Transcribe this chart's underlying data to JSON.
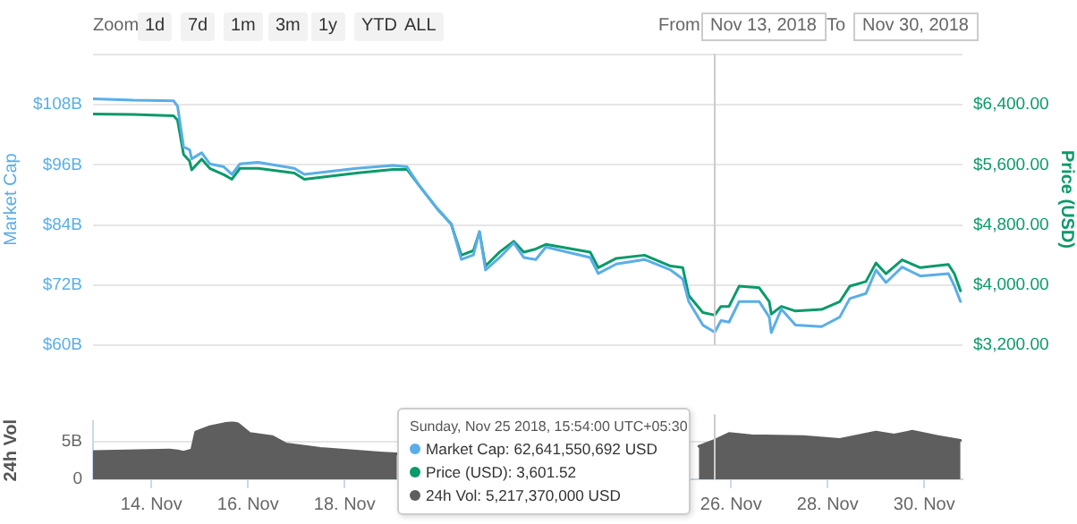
{
  "chart_data": [
    {
      "type": "line",
      "ylabel": "Market Cap",
      "y2label": "Price (USD)",
      "x": [
        "2018-11-12T19:00",
        "2018-11-13T15:00",
        "2018-11-14T11:00",
        "2018-11-14T13:00",
        "2018-11-14T16:00",
        "2018-11-14T19:00",
        "2018-11-14T20:00",
        "2018-11-15T01:00",
        "2018-11-15T05:00",
        "2018-11-15T12:00",
        "2018-11-15T16:00",
        "2018-11-15T20:00",
        "2018-11-16T05:00",
        "2018-11-16T23:00",
        "2018-11-17T04:00",
        "2018-11-18T06:00",
        "2018-11-19T00:00",
        "2018-11-19T07:00",
        "2018-11-19T13:00",
        "2018-11-19T22:00",
        "2018-11-20T05:00",
        "2018-11-20T10:00",
        "2018-11-20T16:00",
        "2018-11-20T19:00",
        "2018-11-20T22:00",
        "2018-11-21T05:00",
        "2018-11-21T12:00",
        "2018-11-21T17:00",
        "2018-11-21T23:00",
        "2018-11-22T04:00",
        "2018-11-23T02:00",
        "2018-11-23T06:00",
        "2018-11-23T15:00",
        "2018-11-24T05:00",
        "2018-11-24T18:00",
        "2018-11-25T00:00",
        "2018-11-25T03:00",
        "2018-11-25T10:00",
        "2018-11-25T15:54",
        "2018-11-25T19:00",
        "2018-11-25T23:00",
        "2018-11-26T04:00",
        "2018-11-26T14:00",
        "2018-11-26T19:00",
        "2018-11-26T20:00",
        "2018-11-27T01:00",
        "2018-11-27T08:00",
        "2018-11-27T21:00",
        "2018-11-28T06:00",
        "2018-11-28T11:00",
        "2018-11-28T19:00",
        "2018-11-29T00:00",
        "2018-11-29T05:00",
        "2018-11-29T13:00",
        "2018-11-29T22:00",
        "2018-11-30T12:00",
        "2018-11-30T15:00",
        "2018-11-30T18:00"
      ],
      "series": [
        {
          "color": "#5aaee8",
          "values": [
            109.2,
            108.9,
            108.8,
            107.7,
            99.6,
            99.0,
            97.2,
            98.4,
            96.2,
            95.6,
            94.1,
            96.2,
            96.5,
            95.3,
            94.1,
            95.3,
            95.9,
            95.6,
            91.9,
            87.3,
            84.2,
            77.1,
            78.0,
            82.7,
            75.0,
            77.5,
            80.4,
            77.5,
            77.1,
            79.6,
            77.5,
            74.3,
            76.2,
            77.1,
            75.0,
            73.2,
            68.7,
            64.0,
            62.6,
            64.9,
            64.6,
            68.7,
            68.7,
            65.6,
            62.5,
            67.2,
            64.0,
            63.7,
            65.6,
            69.3,
            70.3,
            75.0,
            72.5,
            75.6,
            73.8,
            74.3,
            71.8,
            68.7
          ]
        },
        {
          "color": "#0b9a6a",
          "axis": "y2",
          "values": [
            6276,
            6270,
            6255,
            6194,
            5739,
            5650,
            5533,
            5677,
            5554,
            5470,
            5409,
            5554,
            5554,
            5492,
            5409,
            5492,
            5540,
            5540,
            5327,
            5017,
            4810,
            4398,
            4459,
            4707,
            4253,
            4439,
            4583,
            4439,
            4480,
            4542,
            4439,
            4232,
            4356,
            4398,
            4253,
            4232,
            3861,
            3634,
            3600,
            3716,
            3716,
            3985,
            3964,
            3778,
            3613,
            3716,
            3654,
            3675,
            3778,
            3985,
            4047,
            4294,
            4150,
            4336,
            4232,
            4274,
            4150,
            3923
          ]
        }
      ],
      "xlim": [
        "2018-11-12T19:00",
        "2018-11-30T19:00"
      ],
      "ylim": [
        60,
        118.2
      ],
      "yticks": [
        {
          "value": 60,
          "label": "$60B"
        },
        {
          "value": 72,
          "label": "$72B"
        },
        {
          "value": 84,
          "label": "$84B"
        },
        {
          "value": 96,
          "label": "$96B"
        },
        {
          "value": 108,
          "label": "$108B"
        }
      ],
      "y2lim": [
        3200,
        7081
      ],
      "y2ticks": [
        {
          "value": 3200,
          "label": "$3,200.00"
        },
        {
          "value": 4000,
          "label": "$4,000.00"
        },
        {
          "value": 4800,
          "label": "$4,800.00"
        },
        {
          "value": 5600,
          "label": "$5,600.00"
        },
        {
          "value": 6400,
          "label": "$6,400.00"
        }
      ],
      "ref_lines": [
        {
          "axis": "x",
          "value": "2018-11-25T15:54",
          "color": "#cccccc"
        }
      ],
      "grid": "y",
      "tick_labels": "y",
      "annotations": [
        "Zoom",
        "1d",
        "7d",
        "1m",
        "3m",
        "1y",
        "YTD",
        "ALL",
        "From",
        "Nov 13, 2018",
        "To",
        "Nov 30, 2018",
        "Sunday, Nov 25 2018, 15:54:00 UTC+05:30",
        "Market Cap: 62,641,550,692 USD",
        "Price (USD): 3,601.52",
        "24h Vol: 5,217,370,000 USD"
      ]
    },
    {
      "type": "area",
      "ylabel": "24h Vol",
      "x": [
        "2018-11-12T19:00",
        "2018-11-14T09:00",
        "2018-11-14T13:00",
        "2018-11-14T16:00",
        "2018-11-14T20:00",
        "2018-11-14T22:00",
        "2018-11-15T05:00",
        "2018-11-15T16:00",
        "2018-11-15T19:00",
        "2018-11-16T01:00",
        "2018-11-16T12:00",
        "2018-11-16T19:00",
        "2018-11-17T12:00",
        "2018-11-18T19:00",
        "2018-11-19T02:00",
        "2018-11-22T00:00",
        "2018-11-25T08:00",
        "2018-11-25T15:54",
        "2018-11-25T23:00",
        "2018-11-26T10:00",
        "2018-11-27T12:00",
        "2018-11-28T06:00",
        "2018-11-29T00:00",
        "2018-11-29T09:00",
        "2018-11-29T18:00",
        "2018-11-30T07:00",
        "2018-11-30T18:00"
      ],
      "series": [
        {
          "color": "#5e5e5e",
          "values": [
            3.7,
            3.9,
            3.8,
            3.6,
            3.9,
            6.3,
            7.0,
            7.6,
            7.4,
            6.1,
            5.7,
            4.7,
            4.1,
            3.5,
            3.4,
            null,
            4.4,
            5.2,
            6.1,
            5.8,
            5.7,
            5.3,
            6.3,
            5.9,
            6.4,
            5.7,
            5.2
          ]
        }
      ],
      "xlim": [
        "2018-11-12T19:00",
        "2018-11-30T19:00"
      ],
      "xticks": [
        {
          "value": "2018-11-14",
          "label": "14. Nov"
        },
        {
          "value": "2018-11-16",
          "label": "16. Nov"
        },
        {
          "value": "2018-11-18",
          "label": "18. Nov"
        },
        {
          "value": "2018-11-20",
          "label": null
        },
        {
          "value": "2018-11-22",
          "label": null
        },
        {
          "value": "2018-11-24",
          "label": null
        },
        {
          "value": "2018-11-26",
          "label": "26. Nov"
        },
        {
          "value": "2018-11-28",
          "label": "28. Nov"
        },
        {
          "value": "2018-11-30",
          "label": "30. Nov"
        }
      ],
      "ylim": [
        0,
        7.7
      ],
      "yticks": [
        0,
        {
          "value": 5,
          "label": "5B"
        }
      ],
      "ref_lines": [
        {
          "axis": "x",
          "value": "2018-11-25T15:54",
          "color": "#cccccc"
        }
      ],
      "grid": "y"
    }
  ]
}
